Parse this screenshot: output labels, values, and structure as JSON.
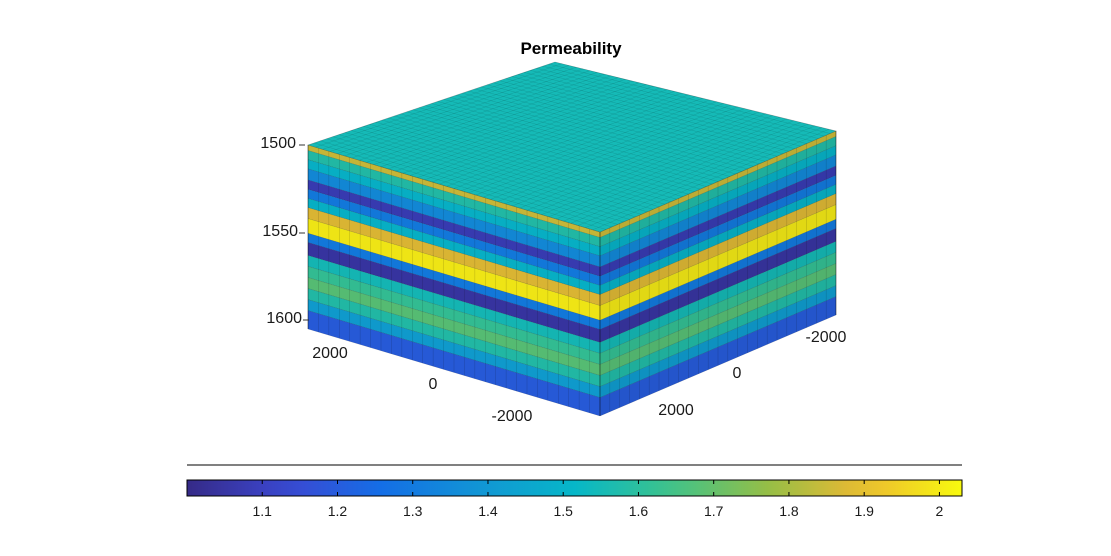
{
  "chart_data": {
    "type": "3d-surface-box",
    "title": "Permeability",
    "colormap": "parula",
    "z_axis": {
      "ticks": [
        "1500",
        "1550",
        "1600"
      ],
      "lim": [
        1500,
        1600
      ],
      "reversed": true
    },
    "x_axis": {
      "ticks": [
        "2000",
        "0",
        "-2000"
      ]
    },
    "y_axis": {
      "ticks": [
        "-2000",
        "0",
        "2000"
      ]
    },
    "layers": [
      {
        "depth_top": 1500,
        "depth_bottom": 1503,
        "value": 1.85
      },
      {
        "depth_top": 1503,
        "depth_bottom": 1508,
        "value": 1.58
      },
      {
        "depth_top": 1508,
        "depth_bottom": 1513,
        "value": 1.5
      },
      {
        "depth_top": 1513,
        "depth_bottom": 1519,
        "value": 1.35
      },
      {
        "depth_top": 1519,
        "depth_bottom": 1524,
        "value": 1.08
      },
      {
        "depth_top": 1524,
        "depth_bottom": 1529,
        "value": 1.3
      },
      {
        "depth_top": 1529,
        "depth_bottom": 1534,
        "value": 1.5
      },
      {
        "depth_top": 1534,
        "depth_bottom": 1540,
        "value": 1.88
      },
      {
        "depth_top": 1540,
        "depth_bottom": 1548,
        "value": 2.0
      },
      {
        "depth_top": 1548,
        "depth_bottom": 1553,
        "value": 1.3
      },
      {
        "depth_top": 1553,
        "depth_bottom": 1560,
        "value": 1.05
      },
      {
        "depth_top": 1560,
        "depth_bottom": 1566,
        "value": 1.55
      },
      {
        "depth_top": 1566,
        "depth_bottom": 1572,
        "value": 1.62
      },
      {
        "depth_top": 1572,
        "depth_bottom": 1578,
        "value": 1.68
      },
      {
        "depth_top": 1578,
        "depth_bottom": 1584,
        "value": 1.58
      },
      {
        "depth_top": 1584,
        "depth_bottom": 1590,
        "value": 1.42
      },
      {
        "depth_top": 1590,
        "depth_bottom": 1600,
        "value": 1.2
      }
    ],
    "top_value": 1.55,
    "colorbar": {
      "location": "bottom",
      "range": [
        1.0,
        2.03
      ],
      "ticks": [
        "1.1",
        "1.2",
        "1.3",
        "1.4",
        "1.5",
        "1.6",
        "1.7",
        "1.8",
        "1.9",
        "2"
      ],
      "tick_values": [
        1.1,
        1.2,
        1.3,
        1.4,
        1.5,
        1.6,
        1.7,
        1.8,
        1.9,
        2.0
      ]
    }
  }
}
